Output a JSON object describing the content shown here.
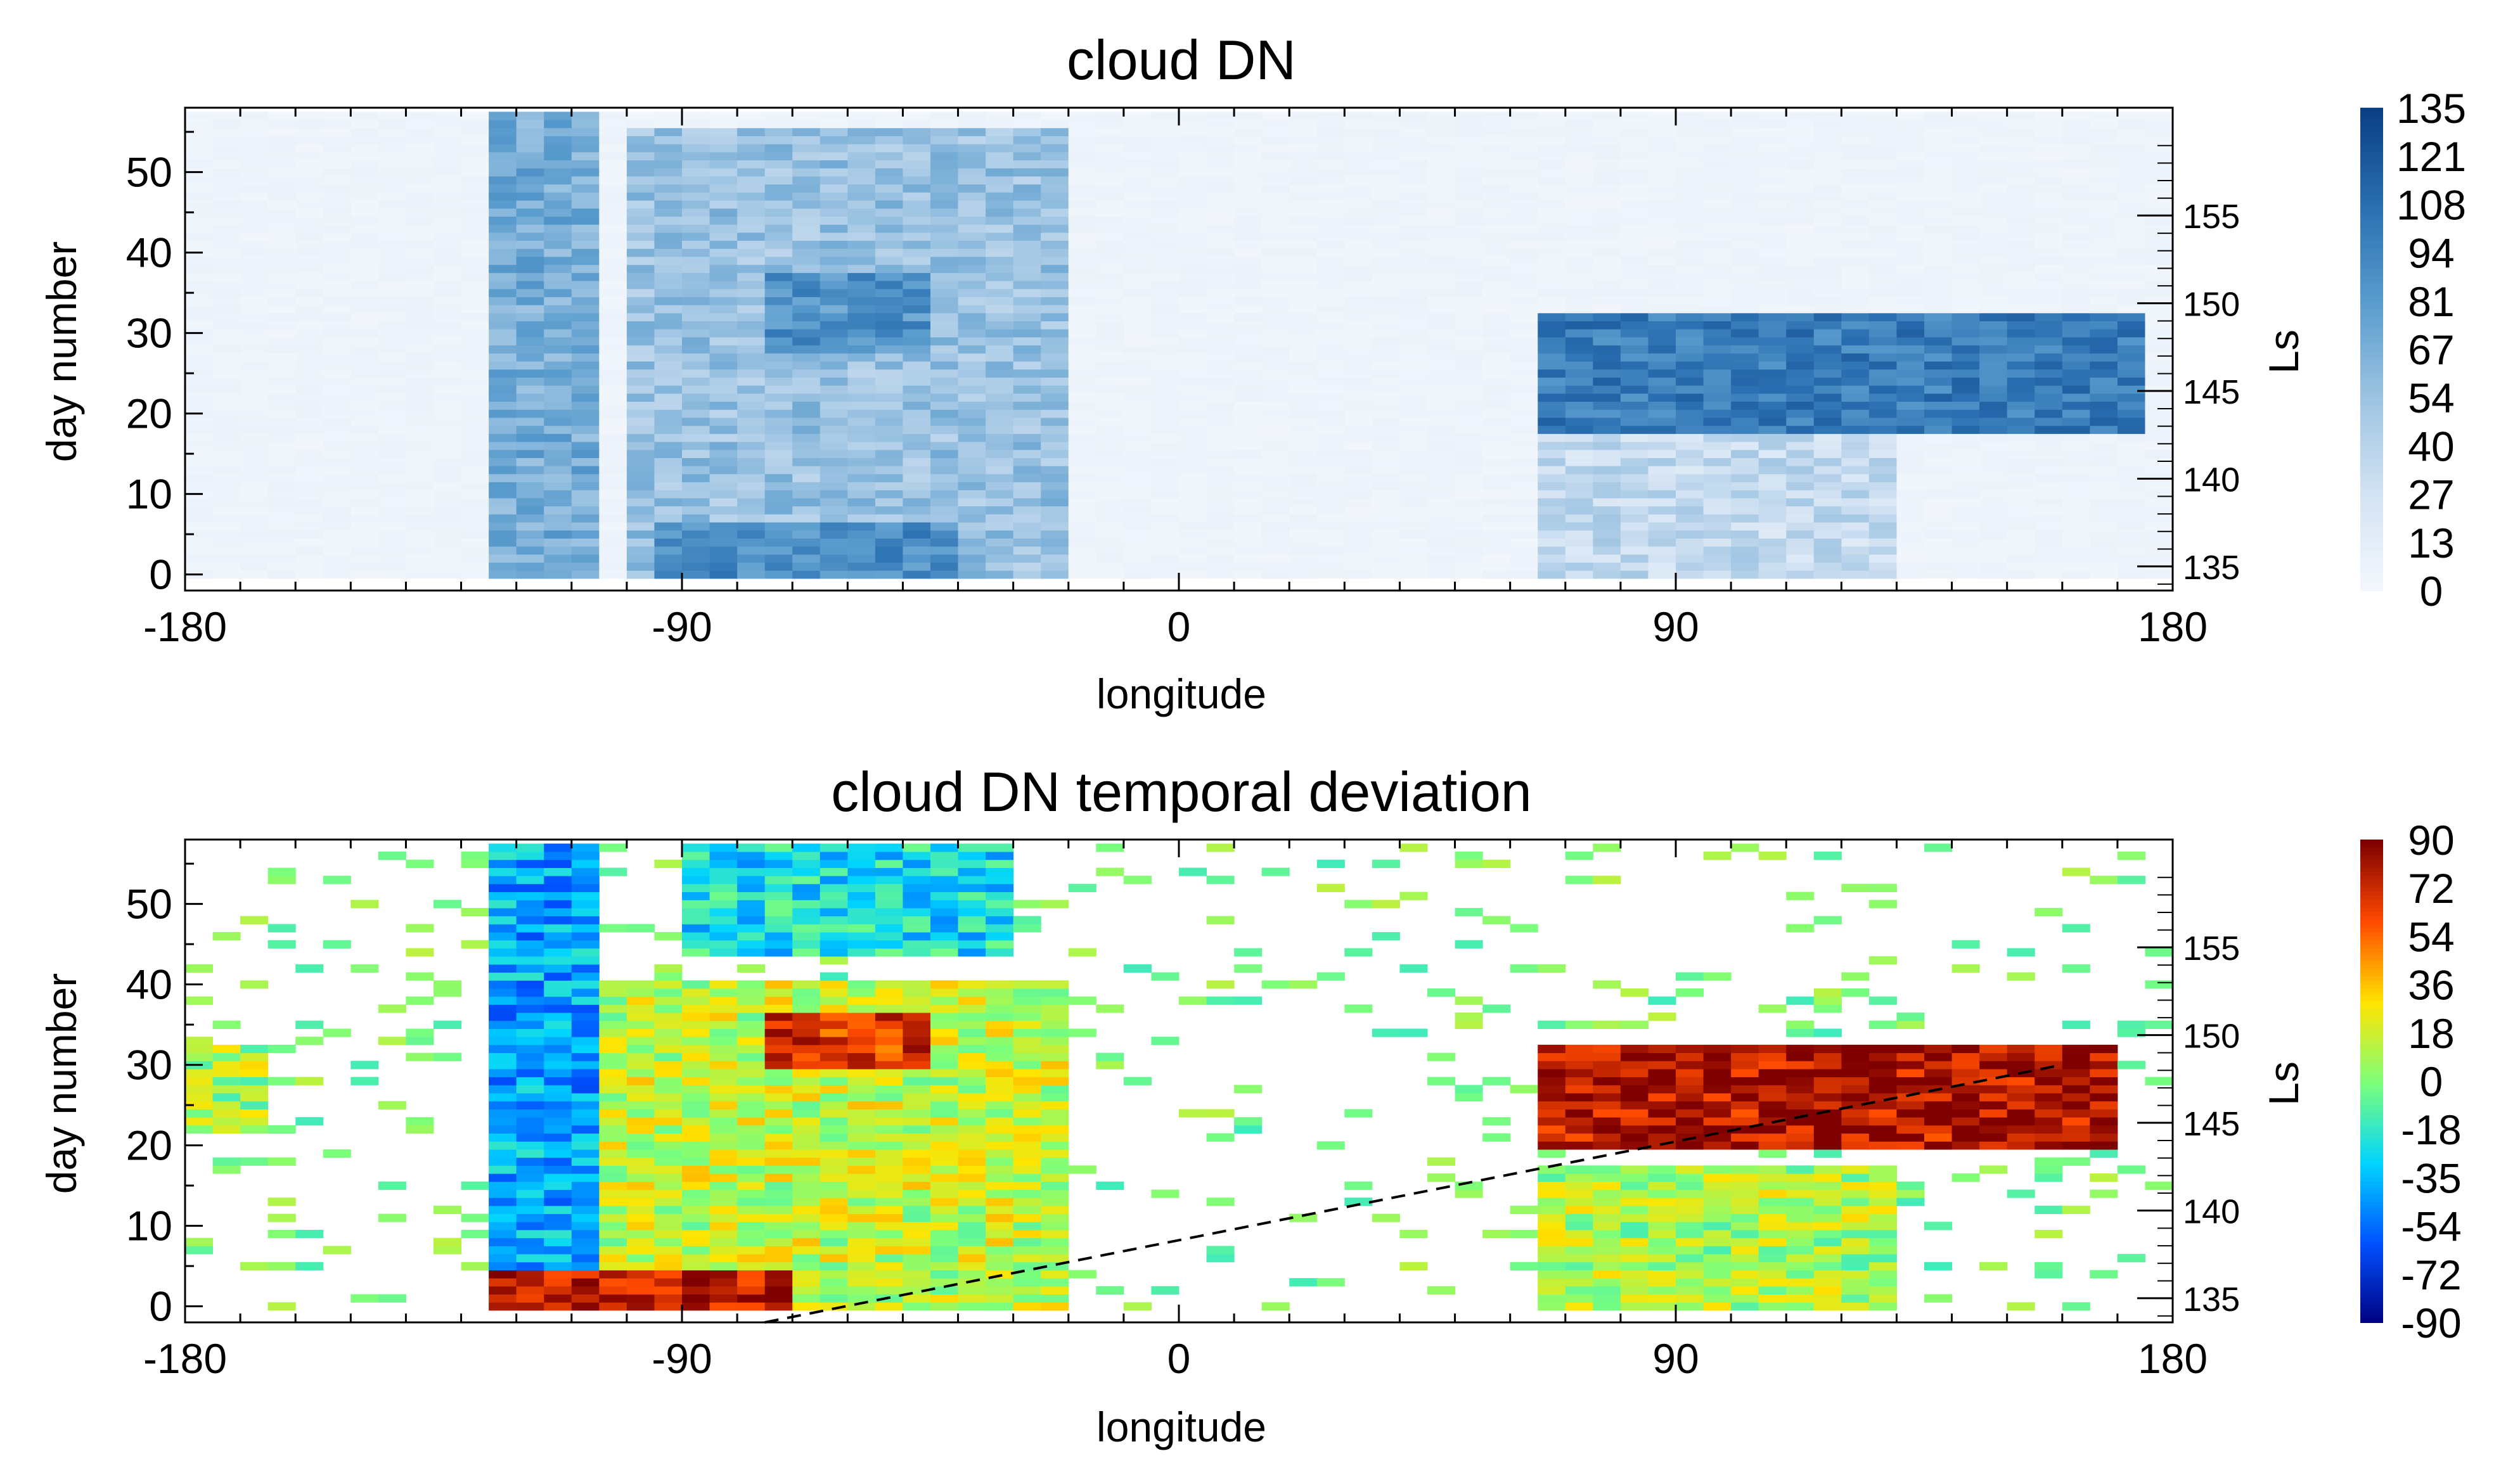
{
  "chart_data": [
    {
      "type": "heatmap",
      "title": "cloud DN",
      "xlabel": "longitude",
      "ylabel": "day number",
      "right_axis_label": "Ls",
      "xlim": [
        -180,
        180
      ],
      "ylim": [
        -2,
        58
      ],
      "x_ticks": [
        "-180",
        "-90",
        "0",
        "90",
        "180"
      ],
      "y_ticks": [
        "0",
        "10",
        "20",
        "30",
        "40",
        "50"
      ],
      "right_ticks": [
        "135",
        "140",
        "145",
        "150",
        "155"
      ],
      "colormap": "white-to-blue",
      "colors": [
        "#f4f8fd",
        "#d4e3f3",
        "#9ec4e2",
        "#5a9ccd",
        "#2a6fb1",
        "#0b3f84"
      ],
      "colorbar_ticks": [
        "135",
        "121",
        "108",
        "94",
        "81",
        "67",
        "54",
        "40",
        "27",
        "13",
        "0"
      ],
      "value_range": [
        0,
        135
      ],
      "features": [
        {
          "lon": [
            -125,
            -105
          ],
          "days": [
            0,
            57
          ],
          "level": 70
        },
        {
          "lon": [
            -100,
            -20
          ],
          "days": [
            0,
            55
          ],
          "level": 55
        },
        {
          "lon": [
            -75,
            -45
          ],
          "days": [
            28,
            37
          ],
          "level": 85
        },
        {
          "lon": [
            -95,
            -40
          ],
          "days": [
            0,
            6
          ],
          "level": 90
        },
        {
          "lon": [
            65,
            175
          ],
          "days": [
            18,
            32
          ],
          "level": 100
        },
        {
          "lon": [
            65,
            130
          ],
          "days": [
            0,
            17
          ],
          "level": 35
        }
      ]
    },
    {
      "type": "heatmap",
      "title": "cloud DN temporal deviation",
      "xlabel": "longitude",
      "ylabel": "day number",
      "right_axis_label": "Ls",
      "xlim": [
        -180,
        180
      ],
      "ylim": [
        -2,
        58
      ],
      "x_ticks": [
        "-180",
        "-90",
        "0",
        "90",
        "180"
      ],
      "y_ticks": [
        "0",
        "10",
        "20",
        "30",
        "40",
        "50"
      ],
      "right_ticks": [
        "135",
        "140",
        "145",
        "150",
        "155"
      ],
      "colormap": "jet",
      "colors": [
        "#00007f",
        "#0050ff",
        "#00d4ff",
        "#7dff7a",
        "#ffe400",
        "#ff4a00",
        "#7f0000"
      ],
      "colorbar_ticks": [
        "90",
        "72",
        "54",
        "36",
        "18",
        "0",
        "-18",
        "-35",
        "-54",
        "-72",
        "-90"
      ],
      "value_range": [
        -90,
        90
      ],
      "dashed_line": {
        "from": [
          -75,
          -2
        ],
        "to": [
          160,
          30
        ]
      },
      "features": [
        {
          "lon": [
            -125,
            -105
          ],
          "days": [
            0,
            57
          ],
          "level": -40
        },
        {
          "lon": [
            -105,
            -20
          ],
          "days": [
            0,
            40
          ],
          "level": 15
        },
        {
          "lon": [
            -90,
            -30
          ],
          "days": [
            44,
            57
          ],
          "level": -25
        },
        {
          "lon": [
            -75,
            -45
          ],
          "days": [
            30,
            36
          ],
          "level": 70
        },
        {
          "lon": [
            -125,
            -70
          ],
          "days": [
            0,
            4
          ],
          "level": 80
        },
        {
          "lon": [
            65,
            170
          ],
          "days": [
            20,
            32
          ],
          "level": 80
        },
        {
          "lon": [
            65,
            130
          ],
          "days": [
            0,
            17
          ],
          "level": 10
        },
        {
          "lon": [
            -180,
            -165
          ],
          "days": [
            22,
            32
          ],
          "level": 10
        }
      ]
    }
  ]
}
